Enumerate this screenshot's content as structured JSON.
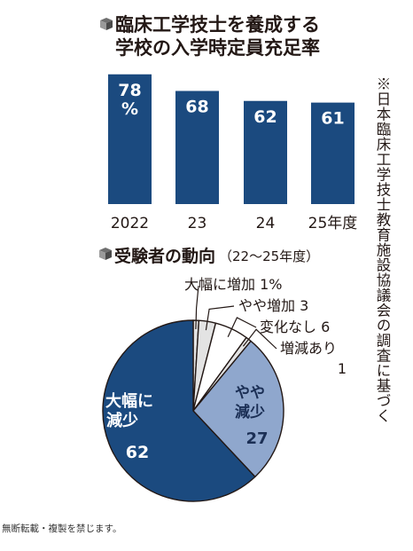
{
  "chart_data": [
    {
      "type": "bar",
      "title": "臨床工学技士を養成する学校の入学時定員充足率",
      "title_lines": [
        "臨床工学技士を養成する",
        "学校の入学時定員充足率"
      ],
      "categories": [
        "2022",
        "23",
        "24",
        "25年度"
      ],
      "values": [
        78,
        68,
        62,
        61
      ],
      "value_labels": [
        [
          "78",
          "%"
        ],
        [
          "68"
        ],
        [
          "62"
        ],
        [
          "61"
        ]
      ],
      "ylim": [
        0,
        80
      ],
      "color": "#1b4a7f",
      "label_color": "#ffffff"
    },
    {
      "type": "pie",
      "title": "受験者の動向",
      "subtitle": "（22〜25年度）",
      "slices": [
        {
          "label": "大幅に増加",
          "value": 1,
          "label_text": "大幅に増加 1%",
          "color": "#e3e3e3"
        },
        {
          "label": "やや増加",
          "value": 3,
          "label_text": "やや増加 3",
          "color": "#e3e3e3"
        },
        {
          "label": "変化なし",
          "value": 6,
          "label_text": "変化なし 6",
          "color": "#ffffff"
        },
        {
          "label": "増減あり",
          "value": 1,
          "label_text": [
            "増減あり",
            "1"
          ],
          "color": "#e3e3e3"
        },
        {
          "label": "やや減少",
          "value": 27,
          "label_text": [
            "やや",
            "減少",
            "27"
          ],
          "color": "#8fa7cd"
        },
        {
          "label": "大幅に減少",
          "value": 62,
          "label_text": [
            "大幅に",
            "減少",
            "62"
          ],
          "color": "#1b4a7f"
        }
      ]
    }
  ],
  "note": "※日本臨床工学技士教育施設協議会の調査に基づく",
  "copyright": "無断転載・複製を禁じます。"
}
